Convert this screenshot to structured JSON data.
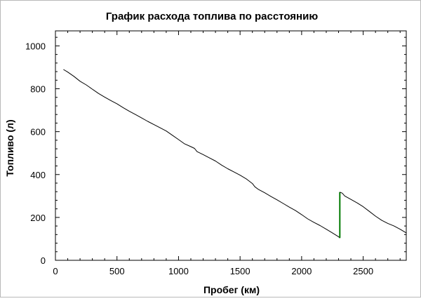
{
  "chart_data": {
    "type": "line",
    "title": "График расхода топлива по расстоянию",
    "xlabel": "Пробег (км)",
    "ylabel": "Топливо (л)",
    "xlim": [
      0,
      2850
    ],
    "ylim": [
      0,
      1070
    ],
    "x_ticks": [
      0,
      500,
      1000,
      1500,
      2000,
      2500
    ],
    "y_ticks": [
      0,
      200,
      400,
      600,
      800,
      1000
    ],
    "grid": false,
    "series": [
      {
        "color": "#000000",
        "points": [
          [
            65,
            890
          ],
          [
            100,
            878
          ],
          [
            150,
            858
          ],
          [
            200,
            835
          ],
          [
            250,
            818
          ],
          [
            300,
            798
          ],
          [
            350,
            778
          ],
          [
            400,
            761
          ],
          [
            450,
            745
          ],
          [
            500,
            730
          ],
          [
            550,
            712
          ],
          [
            600,
            695
          ],
          [
            650,
            680
          ],
          [
            700,
            664
          ],
          [
            750,
            648
          ],
          [
            800,
            633
          ],
          [
            850,
            618
          ],
          [
            900,
            603
          ],
          [
            950,
            583
          ],
          [
            1000,
            563
          ],
          [
            1050,
            543
          ],
          [
            1100,
            530
          ],
          [
            1130,
            522
          ],
          [
            1150,
            507
          ],
          [
            1200,
            493
          ],
          [
            1250,
            478
          ],
          [
            1300,
            463
          ],
          [
            1350,
            444
          ],
          [
            1400,
            427
          ],
          [
            1450,
            412
          ],
          [
            1500,
            397
          ],
          [
            1550,
            380
          ],
          [
            1600,
            358
          ],
          [
            1620,
            343
          ],
          [
            1650,
            330
          ],
          [
            1700,
            315
          ],
          [
            1750,
            298
          ],
          [
            1800,
            282
          ],
          [
            1850,
            265
          ],
          [
            1900,
            248
          ],
          [
            1950,
            232
          ],
          [
            2000,
            213
          ],
          [
            2050,
            193
          ],
          [
            2100,
            177
          ],
          [
            2150,
            162
          ],
          [
            2200,
            145
          ],
          [
            2250,
            128
          ],
          [
            2300,
            110
          ],
          [
            2310,
            104
          ]
        ]
      },
      {
        "color": "#007a00",
        "points": [
          [
            2310,
            104
          ],
          [
            2310,
            318
          ]
        ]
      },
      {
        "color": "#000000",
        "points": [
          [
            2310,
            318
          ],
          [
            2330,
            313
          ],
          [
            2350,
            300
          ],
          [
            2400,
            284
          ],
          [
            2450,
            268
          ],
          [
            2500,
            250
          ],
          [
            2550,
            228
          ],
          [
            2600,
            206
          ],
          [
            2650,
            187
          ],
          [
            2700,
            172
          ],
          [
            2750,
            160
          ],
          [
            2800,
            145
          ],
          [
            2850,
            128
          ]
        ]
      }
    ]
  }
}
